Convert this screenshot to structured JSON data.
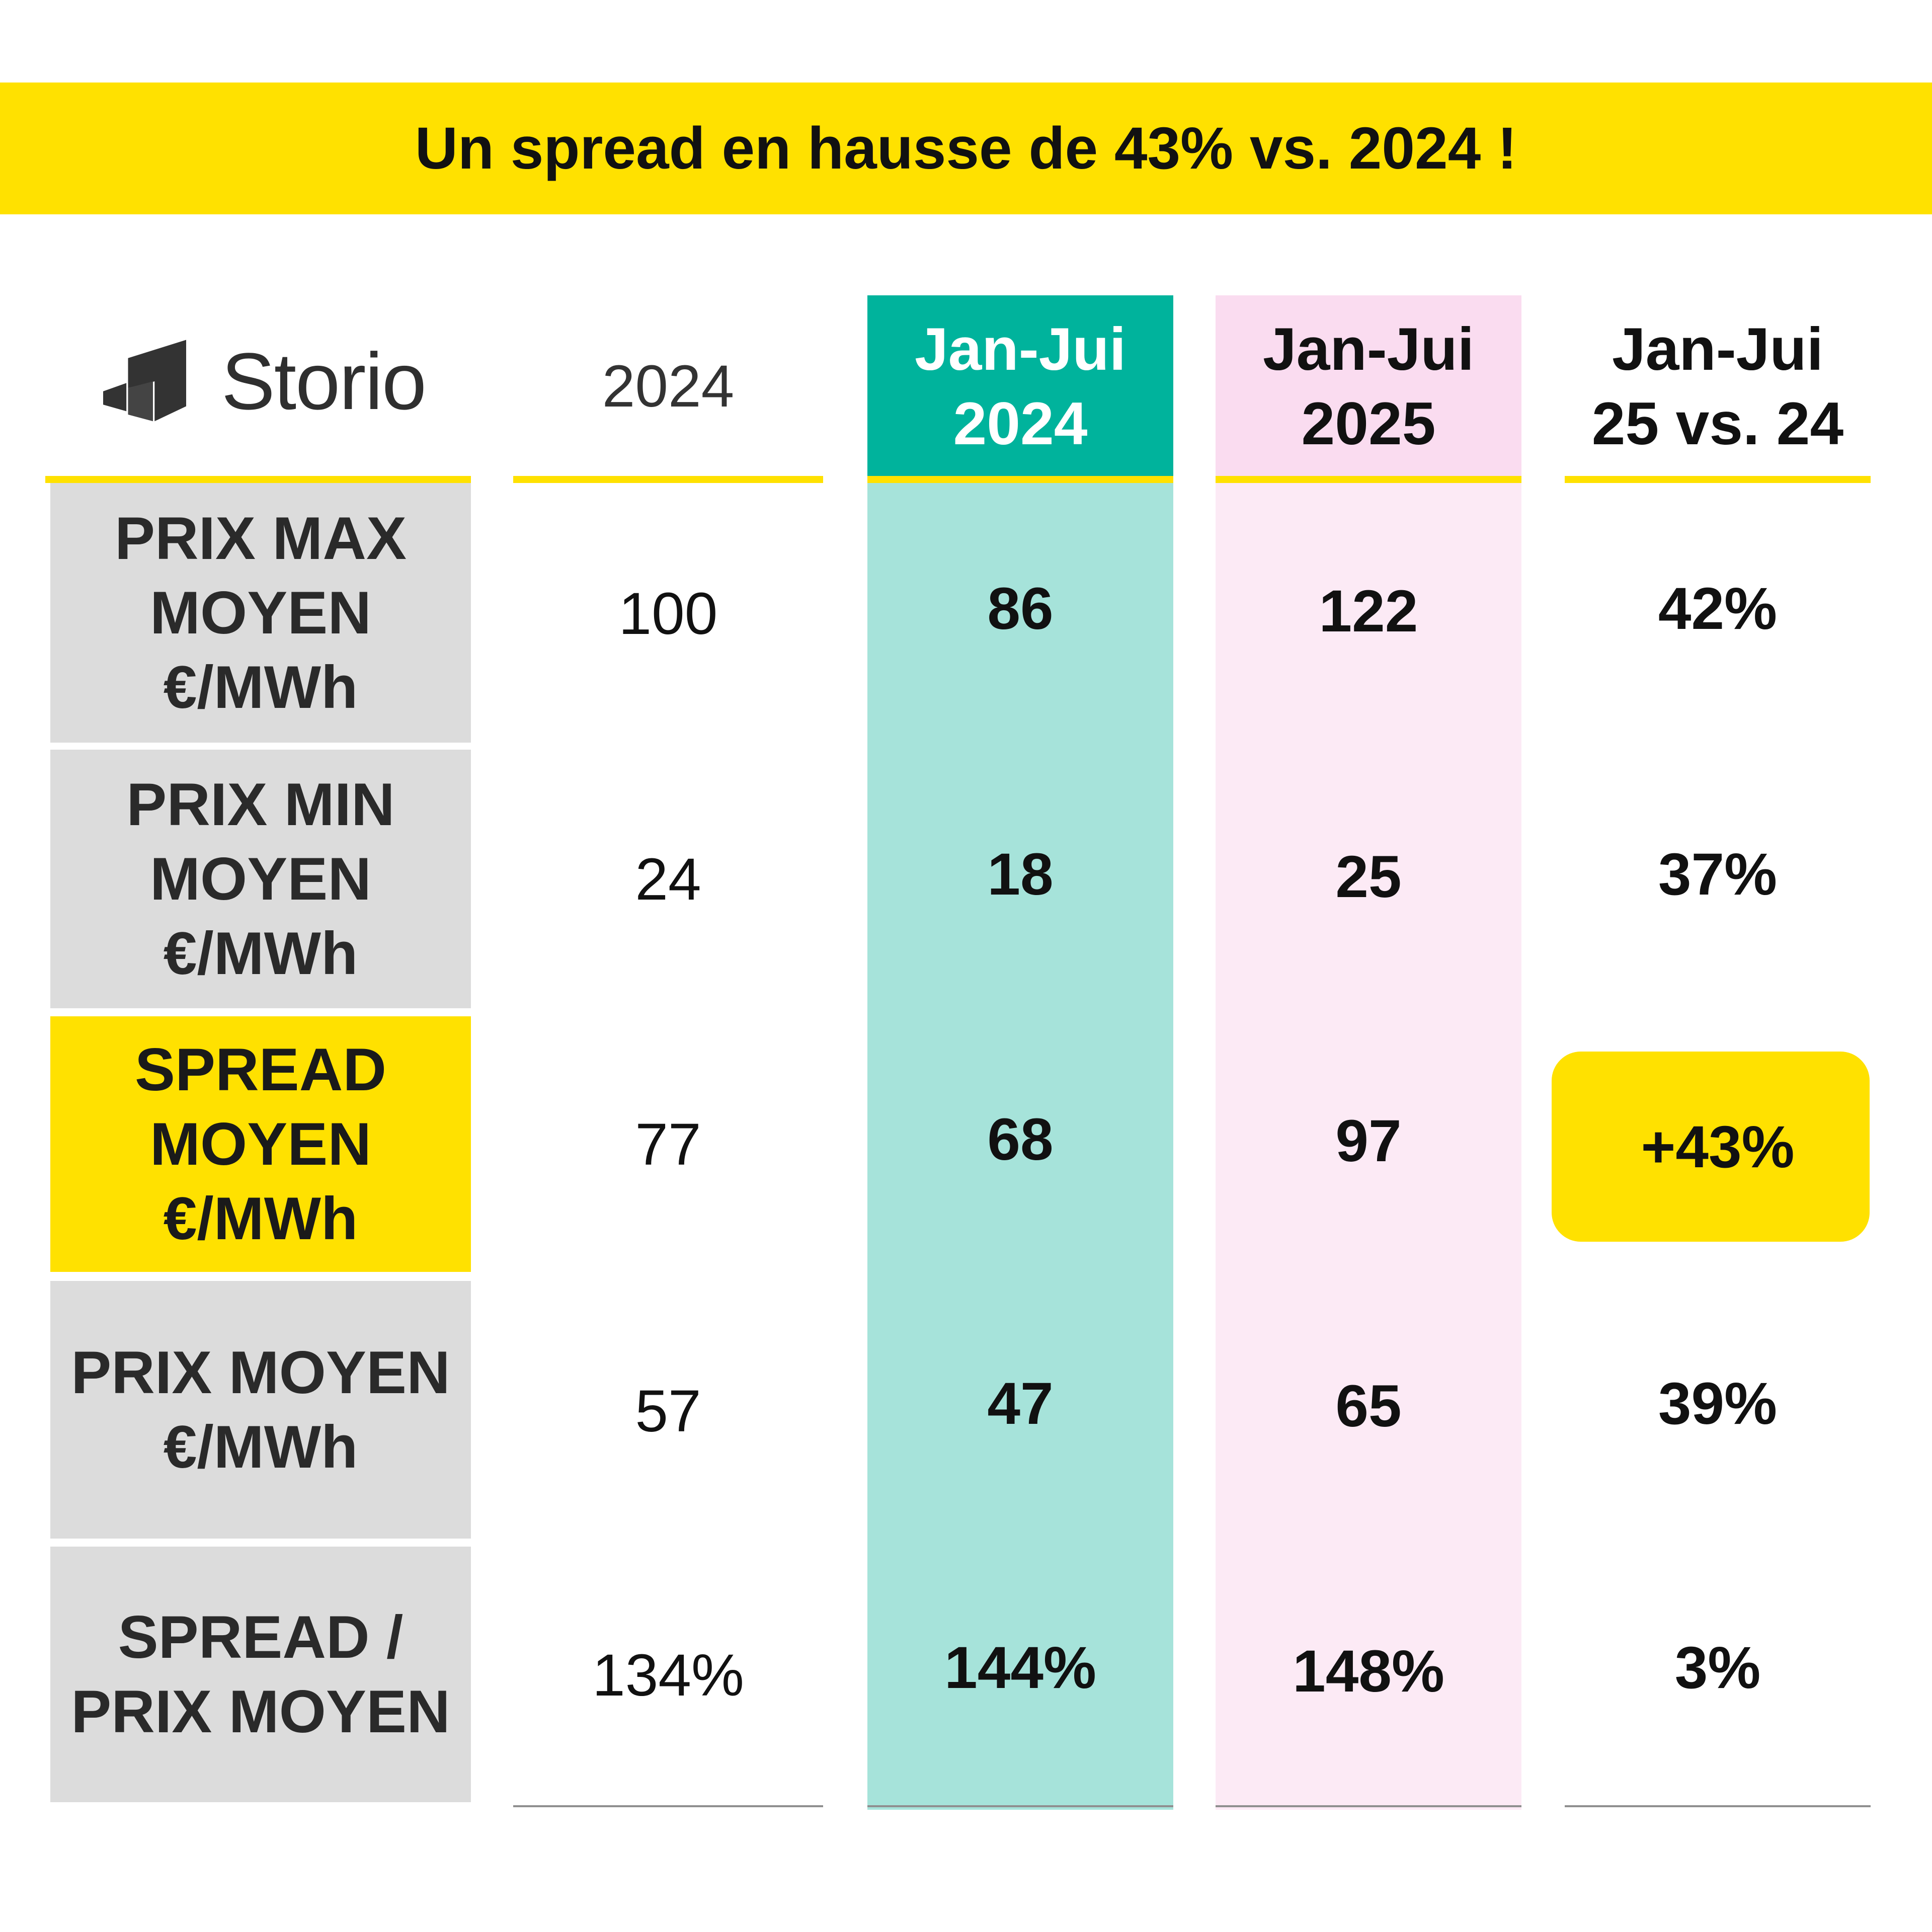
{
  "banner": {
    "text": "Un spread en hausse de 43% vs. 2024 !"
  },
  "logo": {
    "text": "Storio"
  },
  "colors": {
    "yellow": "#FFE100",
    "teal_header": "#00B39C",
    "teal_body": "#A6E3DA",
    "pink_header": "#FADCF0",
    "pink_body": "#FCEAF5",
    "label_grey": "#DCDCDC"
  },
  "chart_data": {
    "type": "table",
    "columns": [
      {
        "line1": "2024",
        "line2": ""
      },
      {
        "line1": "Jan-Jui",
        "line2": "2024"
      },
      {
        "line1": "Jan-Jui",
        "line2": "2025"
      },
      {
        "line1": "Jan-Jui",
        "line2": "25 vs. 24"
      }
    ],
    "rows": [
      {
        "label": [
          "PRIX MAX",
          "MOYEN",
          "€/MWh"
        ],
        "values": [
          "100",
          "86",
          "122",
          "42%"
        ]
      },
      {
        "label": [
          "PRIX MIN",
          "MOYEN",
          "€/MWh"
        ],
        "values": [
          "24",
          "18",
          "25",
          "37%"
        ]
      },
      {
        "label": [
          "SPREAD",
          "MOYEN",
          "€/MWh"
        ],
        "values": [
          "77",
          "68",
          "97",
          "+43%"
        ]
      },
      {
        "label": [
          "PRIX MOYEN",
          "€/MWh"
        ],
        "values": [
          "57",
          "47",
          "65",
          "39%"
        ]
      },
      {
        "label": [
          "SPREAD /",
          "PRIX MOYEN"
        ],
        "values": [
          "134%",
          "144%",
          "148%",
          "3%"
        ]
      }
    ]
  }
}
